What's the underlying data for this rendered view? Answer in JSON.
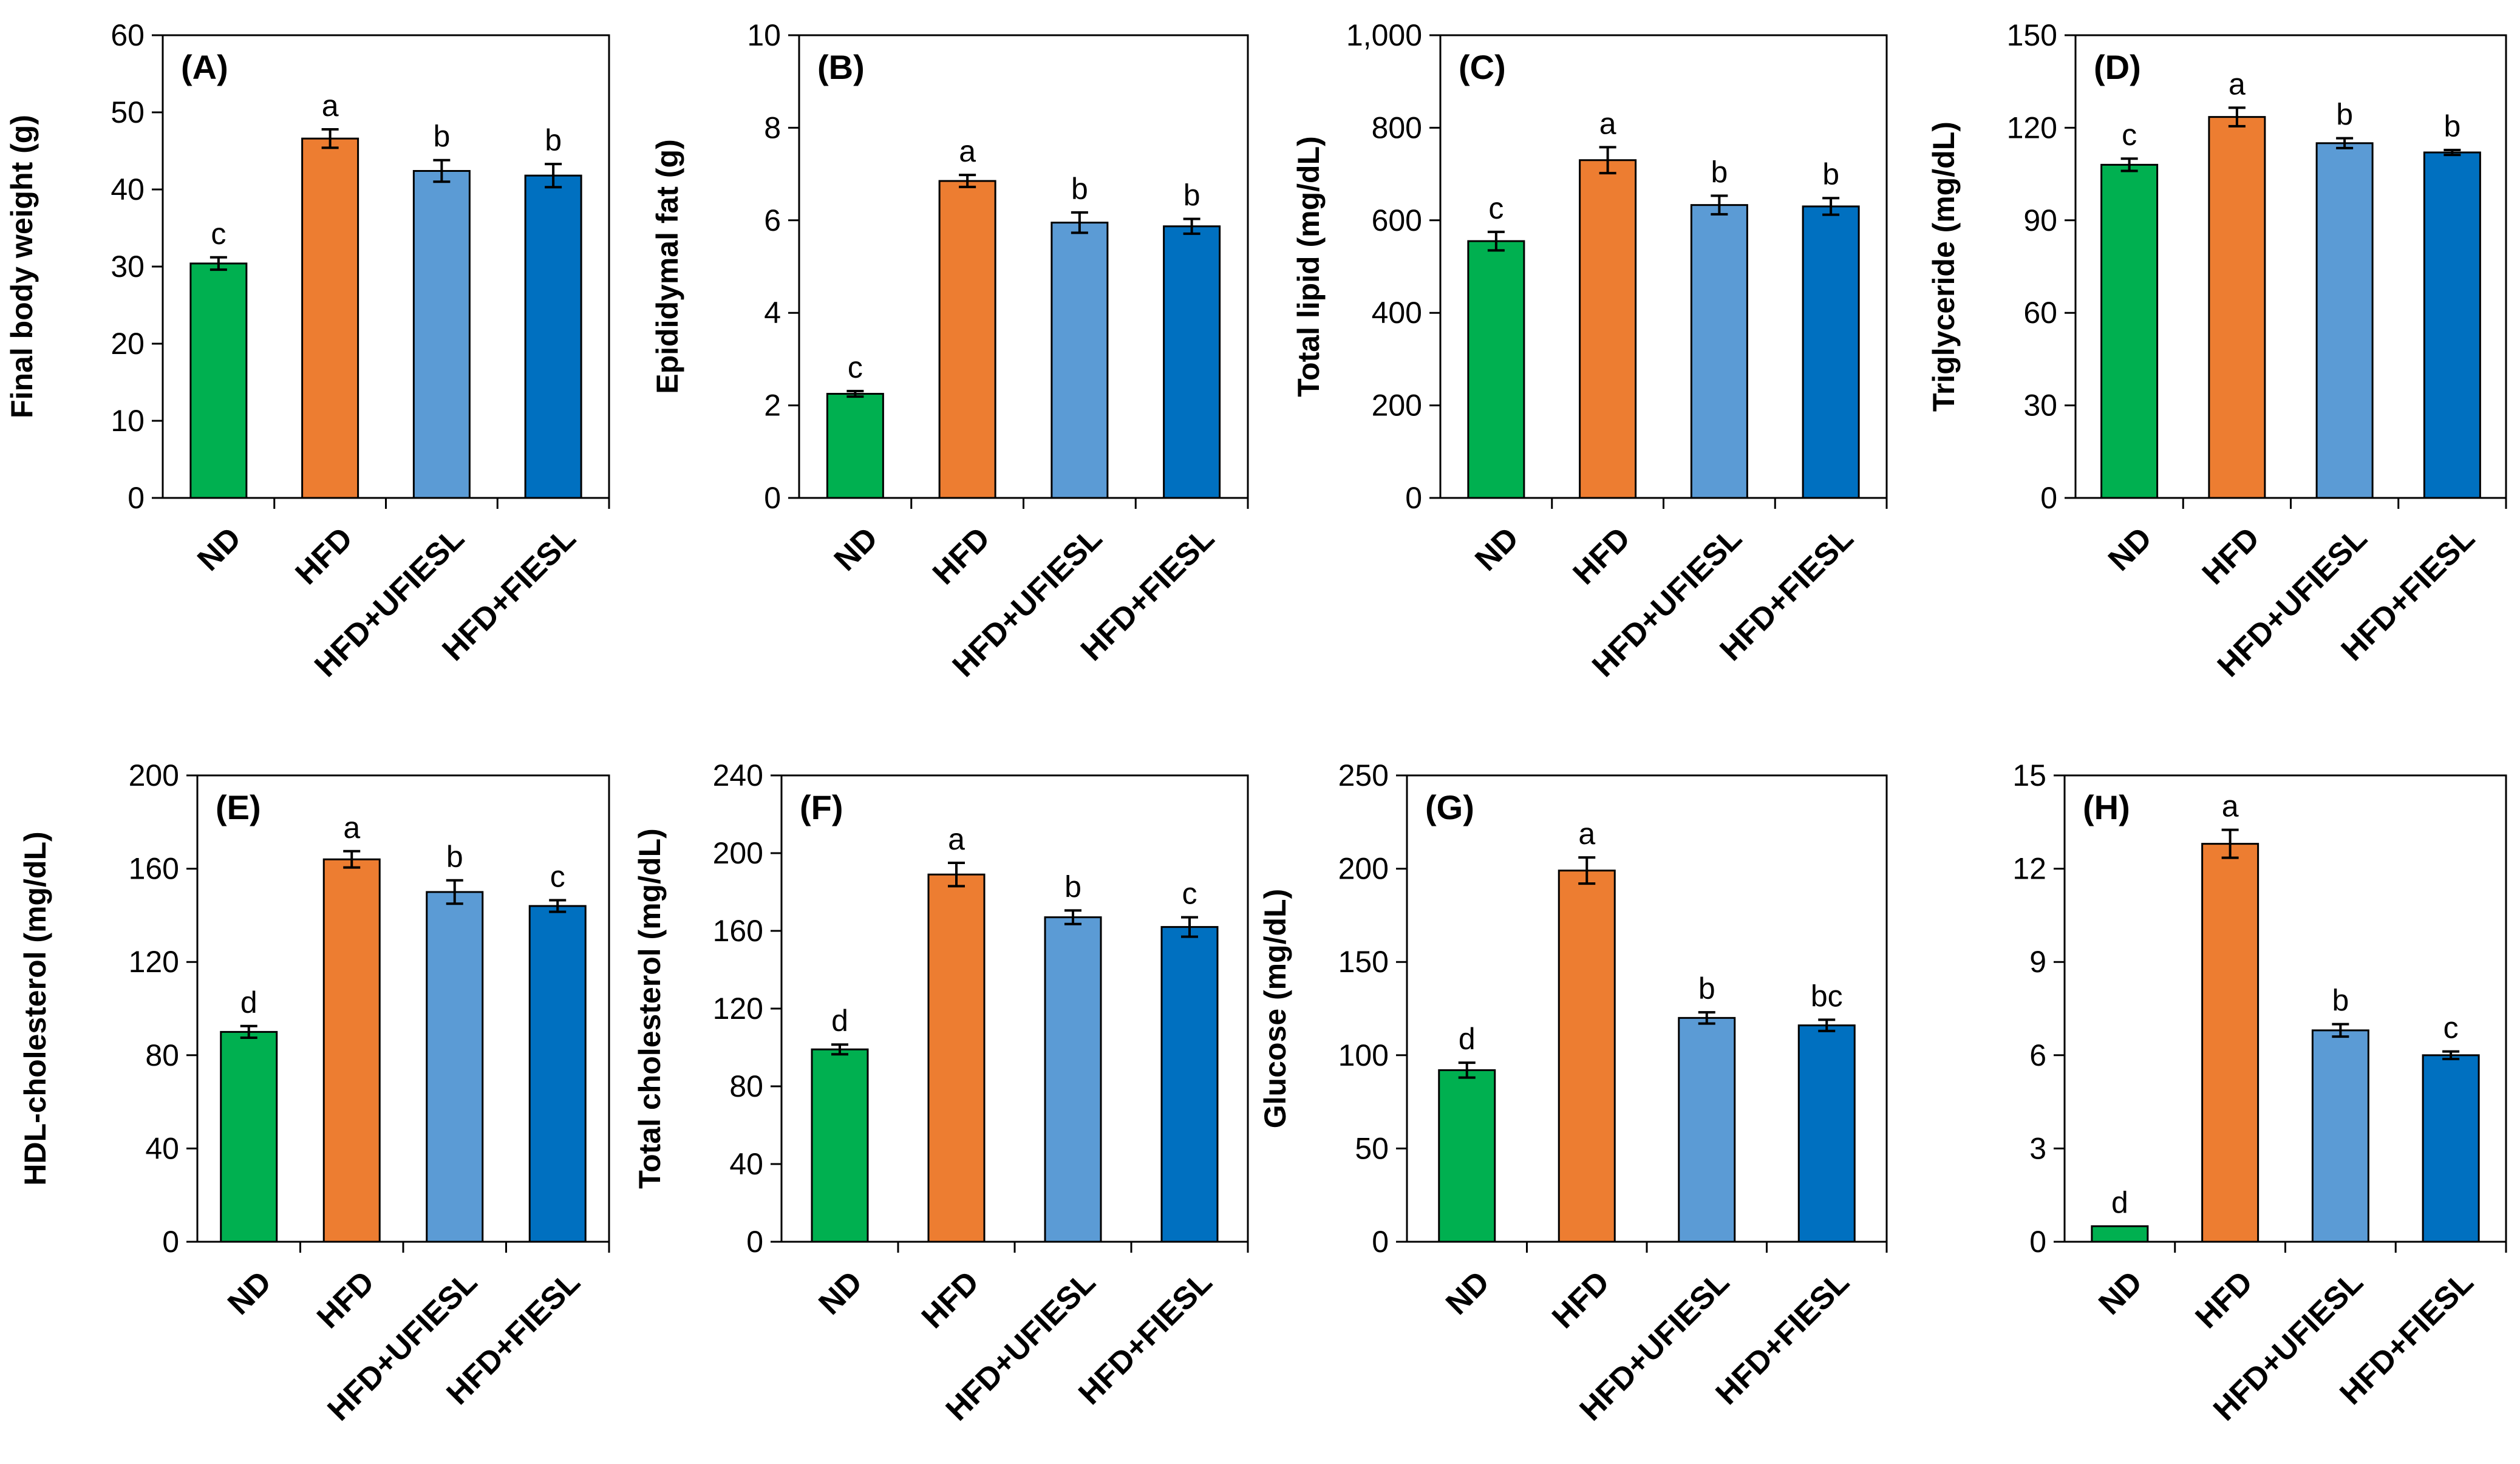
{
  "categories": [
    "ND",
    "HFD",
    "HFD+UFIESL",
    "HFD+FIESL"
  ],
  "bar_colors": [
    "#00b050",
    "#ed7d31",
    "#5b9bd5",
    "#0070c0"
  ],
  "chart_data": [
    {
      "type": "bar",
      "panel": "(A)",
      "title": "",
      "xlabel": "",
      "ylabel": "Final body weight (g)",
      "ylim": [
        0,
        60
      ],
      "yticks": [
        0,
        10,
        20,
        30,
        40,
        50,
        60
      ],
      "tick_labels": [
        "0",
        "10",
        "20",
        "30",
        "40",
        "50",
        "60"
      ],
      "categories": [
        "ND",
        "HFD",
        "HFD+UFIESL",
        "HFD+FIESL"
      ],
      "values": [
        30.4,
        46.6,
        42.4,
        41.8
      ],
      "errors": [
        0.8,
        1.2,
        1.4,
        1.5
      ],
      "letters": [
        "c",
        "a",
        "b",
        "b"
      ]
    },
    {
      "type": "bar",
      "panel": "(B)",
      "title": "",
      "xlabel": "",
      "ylabel": "Epididymal fat (g)",
      "ylim": [
        0,
        10
      ],
      "yticks": [
        0,
        2,
        4,
        6,
        8,
        10
      ],
      "tick_labels": [
        "0",
        "2",
        "4",
        "6",
        "8",
        "10"
      ],
      "categories": [
        "ND",
        "HFD",
        "HFD+UFIESL",
        "HFD+FIESL"
      ],
      "values": [
        2.25,
        6.85,
        5.95,
        5.87
      ],
      "errors": [
        0.06,
        0.13,
        0.22,
        0.16
      ],
      "letters": [
        "c",
        "a",
        "b",
        "b"
      ]
    },
    {
      "type": "bar",
      "panel": "(C)",
      "title": "",
      "xlabel": "",
      "ylabel": "Total lipid (mg/dL)",
      "ylim": [
        0,
        1000
      ],
      "yticks": [
        0,
        200,
        400,
        600,
        800,
        1000
      ],
      "tick_labels": [
        "0",
        "200",
        "400",
        "600",
        "800",
        "1,000"
      ],
      "categories": [
        "ND",
        "HFD",
        "HFD+UFIESL",
        "HFD+FIESL"
      ],
      "values": [
        555,
        730,
        633,
        630
      ],
      "errors": [
        20,
        28,
        20,
        18
      ],
      "letters": [
        "c",
        "a",
        "b",
        "b"
      ]
    },
    {
      "type": "bar",
      "panel": "(D)",
      "title": "",
      "xlabel": "",
      "ylabel": "Triglyceride (mg/dL)",
      "ylim": [
        0,
        150
      ],
      "yticks": [
        0,
        30,
        60,
        90,
        120,
        150
      ],
      "tick_labels": [
        "0",
        "30",
        "60",
        "90",
        "120",
        "150"
      ],
      "categories": [
        "ND",
        "HFD",
        "HFD+UFIESL",
        "HFD+FIESL"
      ],
      "values": [
        108,
        123.5,
        115,
        112
      ],
      "errors": [
        2,
        3,
        1.6,
        0.8
      ],
      "letters": [
        "c",
        "a",
        "b",
        "b"
      ]
    },
    {
      "type": "bar",
      "panel": "(E)",
      "title": "",
      "xlabel": "",
      "ylabel": "HDL-cholesterol (mg/dL)",
      "ylim": [
        0,
        200
      ],
      "yticks": [
        0,
        40,
        80,
        120,
        160,
        200
      ],
      "tick_labels": [
        "0",
        "40",
        "80",
        "120",
        "160",
        "200"
      ],
      "categories": [
        "ND",
        "HFD",
        "HFD+UFIESL",
        "HFD+FIESL"
      ],
      "values": [
        90,
        164,
        150,
        144
      ],
      "errors": [
        2.5,
        3.5,
        5,
        2.5
      ],
      "letters": [
        "d",
        "a",
        "b",
        "c"
      ]
    },
    {
      "type": "bar",
      "panel": "(F)",
      "title": "",
      "xlabel": "",
      "ylabel": "Total cholesterol (mg/dL)",
      "ylim": [
        0,
        240
      ],
      "yticks": [
        0,
        40,
        80,
        120,
        160,
        200,
        240
      ],
      "tick_labels": [
        "0",
        "40",
        "80",
        "120",
        "160",
        "200",
        "240"
      ],
      "categories": [
        "ND",
        "HFD",
        "HFD+UFIESL",
        "HFD+FIESL"
      ],
      "values": [
        99,
        189,
        167,
        162
      ],
      "errors": [
        2.5,
        6,
        3.5,
        5
      ],
      "letters": [
        "d",
        "a",
        "b",
        "c"
      ]
    },
    {
      "type": "bar",
      "panel": "(G)",
      "title": "",
      "xlabel": "",
      "ylabel": "Glucose (mg/dL)",
      "ylim": [
        0,
        250
      ],
      "yticks": [
        0,
        50,
        100,
        150,
        200,
        250
      ],
      "tick_labels": [
        "0",
        "50",
        "100",
        "150",
        "200",
        "250"
      ],
      "categories": [
        "ND",
        "HFD",
        "HFD+UFIESL",
        "HFD+FIESL"
      ],
      "values": [
        92,
        199,
        120,
        116
      ],
      "errors": [
        4,
        7,
        3,
        3
      ],
      "letters": [
        "d",
        "a",
        "b",
        "bc"
      ]
    },
    {
      "type": "bar",
      "panel": "(H)",
      "title": "",
      "xlabel": "",
      "ylabel": "",
      "ylim": [
        0,
        15
      ],
      "yticks": [
        0,
        3,
        6,
        9,
        12,
        15
      ],
      "tick_labels": [
        "0",
        "3",
        "6",
        "9",
        "12",
        "15"
      ],
      "categories": [
        "ND",
        "HFD",
        "HFD+UFIESL",
        "HFD+FIESL"
      ],
      "values": [
        0.5,
        12.8,
        6.8,
        6.0
      ],
      "errors": [
        0,
        0.45,
        0.2,
        0.12
      ],
      "letters": [
        "d",
        "a",
        "b",
        "c"
      ]
    }
  ]
}
